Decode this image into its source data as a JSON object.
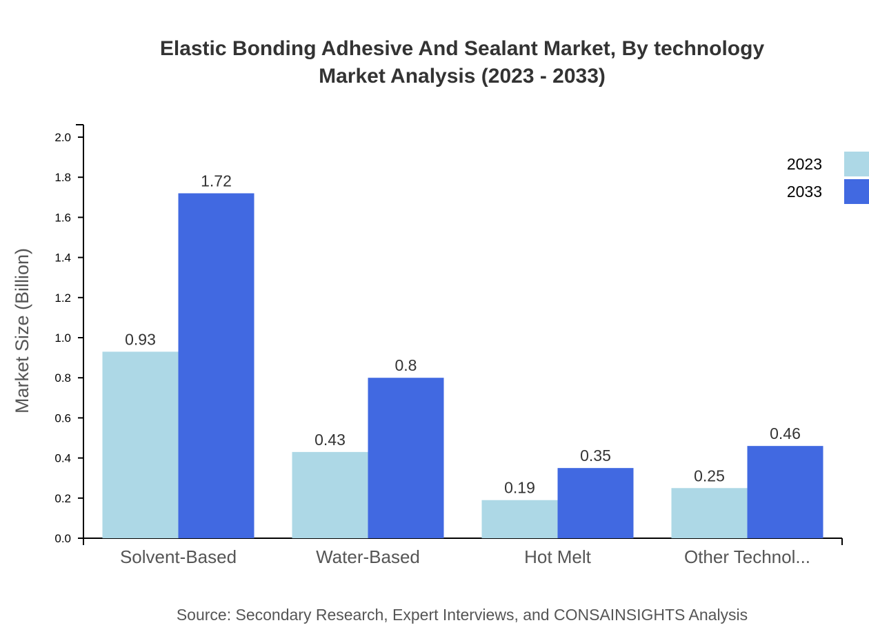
{
  "chart_data": {
    "type": "bar",
    "title": [
      "Elastic Bonding Adhesive And Sealant Market, By technology",
      "Market Analysis (2023 - 2033)"
    ],
    "xlabel": "",
    "ylabel": "Market Size (Billion)",
    "ylim": [
      0,
      2.0
    ],
    "yticks": [
      "0.0",
      "0.2",
      "0.4",
      "0.6",
      "0.8",
      "1.0",
      "1.2",
      "1.4",
      "1.6",
      "1.8",
      "2.0"
    ],
    "categories": [
      "Solvent-Based",
      "Water-Based",
      "Hot Melt",
      "Other Technol..."
    ],
    "series": [
      {
        "name": "2023",
        "color": "#add8e6",
        "values": [
          0.93,
          0.43,
          0.19,
          0.25
        ]
      },
      {
        "name": "2033",
        "color": "#4169e1",
        "values": [
          1.72,
          0.8,
          0.35,
          0.46
        ]
      }
    ],
    "legend_position": "top-right",
    "grid": false,
    "source": "Source: Secondary Research, Expert Interviews, and CONSAINSIGHTS Analysis"
  }
}
